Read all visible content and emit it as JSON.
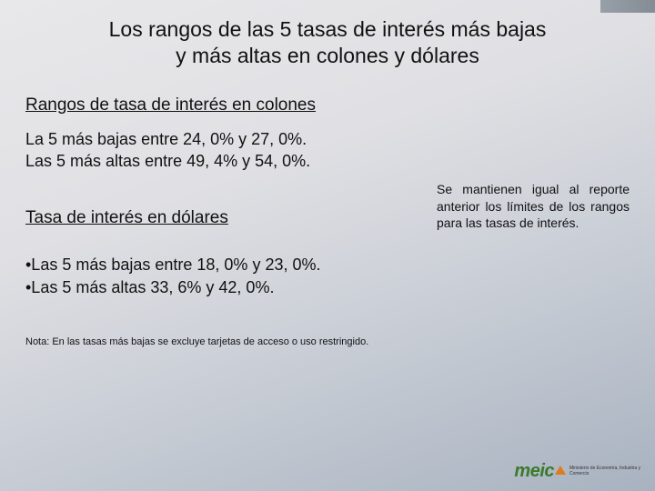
{
  "colors": {
    "text": "#111111",
    "bg_gradient_start": "#e8e8ea",
    "bg_gradient_end": "#a8b2c0",
    "logo_green": "#3a7a2a",
    "logo_orange": "#e07a1a"
  },
  "typography": {
    "title_fontsize_pt": 17,
    "heading_fontsize_pt": 14,
    "body_fontsize_pt": 13,
    "side_fontsize_pt": 10,
    "footnote_fontsize_pt": 8,
    "font_family": "Arial"
  },
  "title": {
    "line1": "Los rangos de las 5 tasas de interés más bajas",
    "line2": "y más altas en colones y dólares"
  },
  "section1": {
    "heading": "Rangos de tasa de interés en colones",
    "line1": "La 5 más bajas entre 24, 0% y 27, 0%.",
    "line2": "Las 5 más altas entre 49, 4% y 54, 0%."
  },
  "section2": {
    "heading": "Tasa de interés en dólares",
    "bullet1": "•Las 5 más bajas entre 18, 0% y 23, 0%.",
    "bullet2": "•Las 5 más altas 33, 6% y 42, 0%."
  },
  "side_note": "Se mantienen igual al reporte anterior los límites de los rangos para las tasas de interés.",
  "footnote": "Nota: En las tasas  más bajas se excluye tarjetas de acceso o uso restringido.",
  "logo": {
    "text": "meic",
    "subtitle": "Ministerio de Economía, Industria y Comercio"
  }
}
